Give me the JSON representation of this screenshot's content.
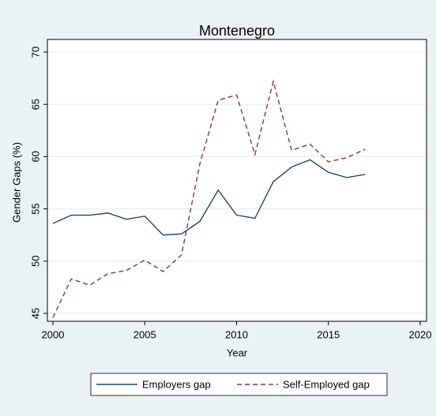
{
  "chart_data": {
    "type": "line",
    "title": "Montenegro",
    "x_label": "Year",
    "y_label": "Gender Gaps (%)",
    "x": [
      2000,
      2001,
      2002,
      2003,
      2004,
      2005,
      2006,
      2007,
      2008,
      2009,
      2010,
      2011,
      2012,
      2013,
      2014,
      2015,
      2016,
      2017
    ],
    "series": [
      {
        "name": "Employers gap",
        "color": "#1a476f",
        "dashed": false,
        "values": [
          53.6,
          54.4,
          54.4,
          54.6,
          54.0,
          54.3,
          52.5,
          52.6,
          53.8,
          56.8,
          54.4,
          54.1,
          57.6,
          59.0,
          59.7,
          58.5,
          58.0,
          58.3
        ]
      },
      {
        "name": "Self-Employed gap",
        "color": "#90353b",
        "dashed": true,
        "values": [
          44.6,
          48.3,
          47.7,
          48.8,
          49.1,
          50.1,
          49.0,
          50.6,
          59.3,
          65.4,
          65.9,
          60.2,
          67.2,
          60.6,
          61.2,
          59.5,
          59.9,
          60.7
        ]
      }
    ],
    "xlim": [
      2000,
      2020
    ],
    "xticks": [
      2000,
      2005,
      2010,
      2015,
      2020
    ],
    "ylim": [
      45,
      70
    ],
    "yticks": [
      45,
      50,
      55,
      60,
      65,
      70
    ],
    "grid": true,
    "legend": "bottom"
  }
}
